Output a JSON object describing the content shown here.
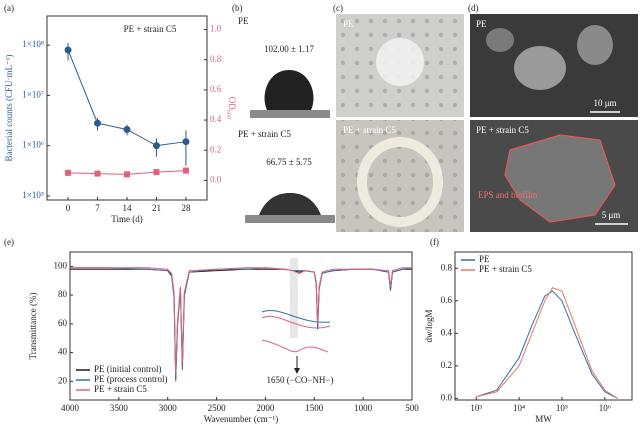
{
  "chart_data": [
    {
      "type": "line",
      "panel": "(a)",
      "annotation": "PE + strain C5",
      "x": [
        0,
        7,
        14,
        21,
        28
      ],
      "xlim": [
        -5,
        33
      ],
      "xticks": [
        0,
        7,
        14,
        21,
        28
      ],
      "xlabel": "Time (d)",
      "ylabel": "Bacterial counts (CFU·mL⁻¹)",
      "y2label": "OD₆₀₀",
      "log_y": true,
      "ylim": [
        83000,
        380000000
      ],
      "yticks": [
        {
          "value": 100000,
          "label": "1×10⁵"
        },
        {
          "value": 1000000,
          "label": "1×10⁶"
        },
        {
          "value": 10000000,
          "label": "1×10⁷"
        },
        {
          "value": 100000000,
          "label": "1×10⁸"
        }
      ],
      "y2lim": [
        -0.13,
        1.09
      ],
      "y2ticks": [
        {
          "value": 0,
          "label": "0.0"
        },
        0.2,
        0.4,
        0.6,
        0.8,
        {
          "value": 1,
          "label": "1.0"
        }
      ],
      "series": [
        {
          "color": "#2e5a8c",
          "marker": "circle",
          "values": [
            80000000,
            2800000,
            2100000,
            1000000,
            1200000
          ],
          "errors": [
            30000000,
            800000,
            500000,
            400000,
            800000
          ]
        },
        {
          "color": "#e0607e",
          "marker": "square",
          "axis": "y2",
          "values": [
            0.05,
            0.045,
            0.04,
            0.055,
            0.065
          ],
          "errors": [
            0.02,
            0.015,
            0.015,
            0.02,
            0.02
          ]
        }
      ]
    },
    {
      "type": "line",
      "panel": "(e)",
      "annotation": "1650 (−CO−NH−)",
      "legend": "lower left",
      "x": [
        4000,
        3600,
        3200,
        3000,
        2960,
        2935,
        2918,
        2900,
        2870,
        2850,
        2830,
        2780,
        2500,
        2200,
        2000,
        1800,
        1720,
        1650,
        1600,
        1500,
        1480,
        1465,
        1450,
        1420,
        1380,
        1300,
        1100,
        900,
        740,
        720,
        700,
        600,
        500
      ],
      "xlim": [
        4000,
        500
      ],
      "xticks": [
        4000,
        3500,
        3000,
        2500,
        2000,
        1500,
        1000,
        500
      ],
      "xlabel": "Wavenumber (cm⁻¹)",
      "ylabel": "Transmittance (%)",
      "ylim": [
        7,
        110
      ],
      "yticks": [
        20,
        40,
        60,
        80,
        100
      ],
      "series": [
        {
          "name": "PE (initial control)",
          "color": "#1a1a1a",
          "values": [
            98,
            98,
            98,
            97,
            94,
            80,
            22,
            60,
            85,
            30,
            80,
            96,
            97,
            98,
            98,
            98,
            97,
            96,
            97,
            96,
            88,
            58,
            85,
            95,
            96,
            97,
            98,
            98,
            96,
            84,
            96,
            98,
            98
          ]
        },
        {
          "name": "PE (process control)",
          "color": "#3a6ea5",
          "values": [
            99,
            99,
            98,
            97,
            93,
            78,
            20,
            58,
            84,
            28,
            79,
            96,
            98,
            98,
            99,
            98,
            97,
            97,
            97,
            96,
            87,
            56,
            84,
            95,
            96,
            97,
            98,
            98,
            96,
            83,
            96,
            98,
            99
          ]
        },
        {
          "name": "PE + strain C5",
          "color": "#e0607e",
          "values": [
            99,
            99,
            99,
            98,
            95,
            82,
            25,
            62,
            86,
            33,
            82,
            97,
            98,
            99,
            99,
            98,
            97,
            95,
            97,
            96,
            89,
            60,
            86,
            96,
            97,
            98,
            98,
            98,
            97,
            86,
            97,
            99,
            99
          ]
        }
      ]
    },
    {
      "type": "line",
      "panel": "(f)",
      "legend": "upper left",
      "log_x": true,
      "x": [
        1000,
        3000,
        10000,
        20000,
        40000,
        60000,
        100000,
        200000,
        500000,
        1000000,
        2000000
      ],
      "xlim": [
        320,
        4300000
      ],
      "xticks": [
        {
          "value": 1000,
          "label": "10³"
        },
        {
          "value": 10000,
          "label": "10⁴"
        },
        {
          "value": 100000,
          "label": "10⁵"
        },
        {
          "value": 1000000,
          "label": "10⁶"
        }
      ],
      "xlabel": "MW",
      "ylabel": "dw/logM",
      "ylim": [
        -0.01,
        0.9
      ],
      "yticks": [
        {
          "value": 0,
          "label": "0.0"
        },
        0.2,
        0.4,
        0.6,
        0.8
      ],
      "series": [
        {
          "name": "PE",
          "color": "#3a6ea5",
          "values": [
            0.01,
            0.05,
            0.25,
            0.45,
            0.63,
            0.66,
            0.6,
            0.4,
            0.15,
            0.04,
            0.0
          ]
        },
        {
          "name": "PE + strain C5",
          "color": "#e07a6a",
          "values": [
            0.01,
            0.04,
            0.2,
            0.4,
            0.6,
            0.68,
            0.66,
            0.45,
            0.17,
            0.05,
            0.0
          ]
        }
      ]
    }
  ],
  "panels": {
    "b": {
      "label": "(b)",
      "items": [
        {
          "title": "PE",
          "angle": "102.00 ± 1.17"
        },
        {
          "title": "PE + strain C5",
          "angle": "66.75 ± 5.75"
        }
      ]
    },
    "c": {
      "label": "(c)",
      "items": [
        "PE",
        "PE + strain C5"
      ]
    },
    "d": {
      "label": "(d)",
      "items": [
        {
          "title": "PE",
          "scale": "10 μm"
        },
        {
          "title": "PE + strain C5",
          "note": "EPS and biofilm",
          "scale": "5 μm"
        }
      ]
    }
  }
}
